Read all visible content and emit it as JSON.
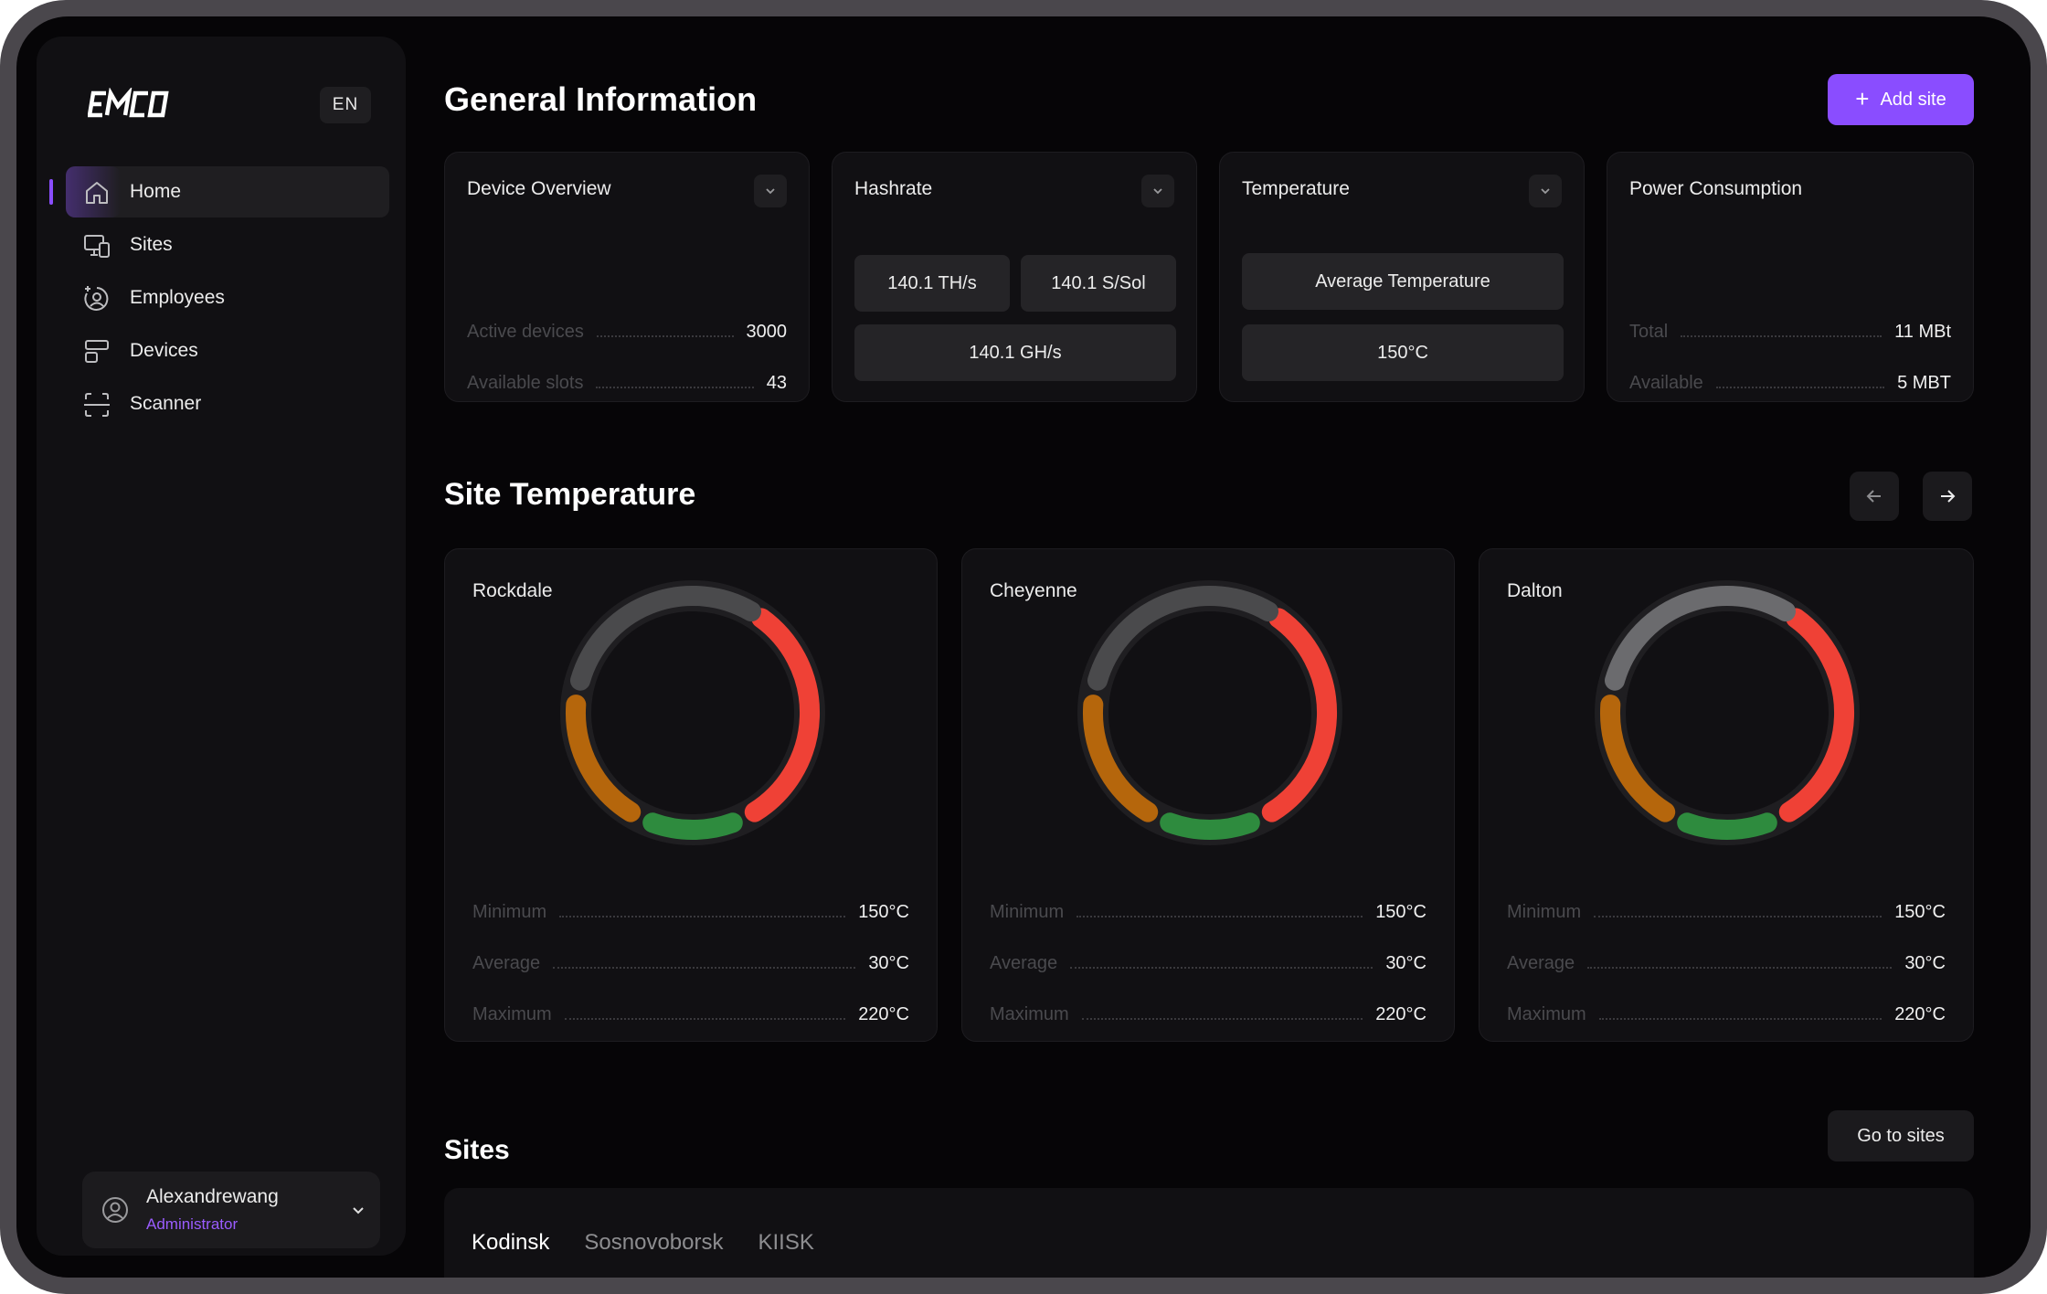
{
  "sidebar": {
    "lang": "EN",
    "nav": [
      {
        "label": "Home",
        "icon": "home-icon",
        "active": true
      },
      {
        "label": "Sites",
        "icon": "sites-icon"
      },
      {
        "label": "Employees",
        "icon": "employees-icon"
      },
      {
        "label": "Devices",
        "icon": "devices-icon"
      },
      {
        "label": "Scanner",
        "icon": "scanner-icon"
      }
    ],
    "user": {
      "name": "Alexandrewang",
      "role": "Administrator"
    }
  },
  "general": {
    "title": "General Information",
    "add_site_label": "Add site",
    "device_overview": {
      "title": "Device Overview",
      "rows": [
        {
          "label": "Active devices",
          "value": "3000"
        },
        {
          "label": "Available slots",
          "value": "43"
        }
      ]
    },
    "hashrate": {
      "title": "Hashrate",
      "pills": [
        "140.1 TH/s",
        "140.1 S/Sol",
        "140.1 GH/s"
      ]
    },
    "temperature": {
      "title": "Temperature",
      "label": "Average Temperature",
      "value": "150°C"
    },
    "power": {
      "title": "Power Consumption",
      "rows": [
        {
          "label": "Total",
          "value": "11 MBt"
        },
        {
          "label": "Available",
          "value": "5 MBT"
        }
      ]
    }
  },
  "site_temperature": {
    "title": "Site Temperature",
    "sites": [
      {
        "name": "Rockdale",
        "rows": [
          {
            "label": "Minimum",
            "value": "150°C"
          },
          {
            "label": "Average",
            "value": "30°C"
          },
          {
            "label": "Maximum",
            "value": "220°C"
          }
        ]
      },
      {
        "name": "Cheyenne",
        "rows": [
          {
            "label": "Minimum",
            "value": "150°C"
          },
          {
            "label": "Average",
            "value": "30°C"
          },
          {
            "label": "Maximum",
            "value": "220°C"
          }
        ]
      },
      {
        "name": "Dalton",
        "rows": [
          {
            "label": "Minimum",
            "value": "150°C"
          },
          {
            "label": "Average",
            "value": "30°C"
          },
          {
            "label": "Maximum",
            "value": "220°C"
          }
        ]
      }
    ],
    "gauge_colors": {
      "red": "#ef4136",
      "green": "#2e8b3e",
      "orange": "#b5660c",
      "grey": "#4a4a4c"
    }
  },
  "sites": {
    "title": "Sites",
    "go_label": "Go to sites",
    "tabs": [
      "Kodinsk",
      "Sosnovoborsk",
      "KIISK"
    ]
  },
  "colors": {
    "accent": "#8a4dff"
  }
}
